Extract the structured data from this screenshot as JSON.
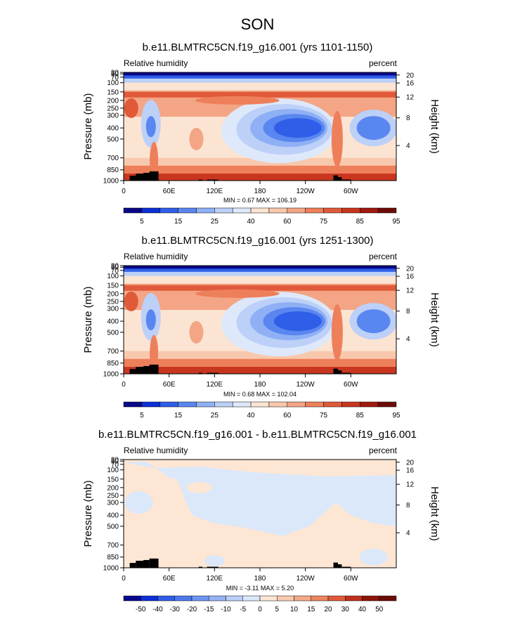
{
  "title": "SON",
  "chart_data": [
    {
      "type": "heatmap",
      "title": "b.e11.BLMTRC5CN.f19_g16.001 (yrs 1101-1150)",
      "left_label": "Relative humidity",
      "right_label": "percent",
      "ylabel": "Pressure (mb)",
      "ylabel_right": "Height (km)",
      "y_ticks": [
        "30",
        "50",
        "70",
        "100",
        "150",
        "200",
        "250",
        "300",
        "400",
        "500",
        "700",
        "850",
        "1000"
      ],
      "y_right_ticks": [
        "20",
        "16",
        "12",
        "8",
        "4"
      ],
      "x_ticks": [
        "0",
        "60E",
        "120E",
        "180",
        "120W",
        "60W"
      ],
      "stats": "MIN = 0.67  MAX = 106.19",
      "min": 0.67,
      "max": 106.19,
      "colorbar_labels": [
        "5",
        "15",
        "25",
        "40",
        "60",
        "75",
        "85",
        "95"
      ]
    },
    {
      "type": "heatmap",
      "title": "b.e11.BLMTRC5CN.f19_g16.001 (yrs 1251-1300)",
      "left_label": "Relative humidity",
      "right_label": "percent",
      "ylabel": "Pressure (mb)",
      "ylabel_right": "Height (km)",
      "y_ticks": [
        "30",
        "50",
        "70",
        "100",
        "150",
        "200",
        "250",
        "300",
        "400",
        "500",
        "700",
        "850",
        "1000"
      ],
      "y_right_ticks": [
        "20",
        "16",
        "12",
        "8",
        "4"
      ],
      "x_ticks": [
        "0",
        "60E",
        "120E",
        "180",
        "120W",
        "60W"
      ],
      "stats": "MIN = 0.68  MAX = 102.04",
      "min": 0.68,
      "max": 102.04,
      "colorbar_labels": [
        "5",
        "15",
        "25",
        "40",
        "60",
        "75",
        "85",
        "95"
      ]
    },
    {
      "type": "heatmap",
      "title": "b.e11.BLMTRC5CN.f19_g16.001 - b.e11.BLMTRC5CN.f19_g16.001",
      "left_label": "Relative humidity",
      "right_label": "percent",
      "ylabel": "Pressure (mb)",
      "ylabel_right": "Height (km)",
      "y_ticks": [
        "30",
        "50",
        "70",
        "100",
        "150",
        "200",
        "250",
        "300",
        "400",
        "500",
        "700",
        "850",
        "1000"
      ],
      "y_right_ticks": [
        "20",
        "16",
        "12",
        "8",
        "4"
      ],
      "x_ticks": [
        "0",
        "60E",
        "120E",
        "180",
        "120W",
        "60W"
      ],
      "stats": "MIN = -3.11  MAX = 5.20",
      "min": -3.11,
      "max": 5.2,
      "colorbar_labels": [
        "-50",
        "-40",
        "-30",
        "-20",
        "-15",
        "-10",
        "-5",
        "0",
        "5",
        "10",
        "15",
        "20",
        "30",
        "40",
        "50"
      ]
    }
  ],
  "colors": {
    "rh_scale": [
      "#08088a",
      "#0c2fd6",
      "#2f5ee8",
      "#5a86f0",
      "#8fb0f5",
      "#bcd0f8",
      "#dde8fa",
      "#fbe4d2",
      "#f8c8ad",
      "#f4a585",
      "#ee7f5b",
      "#e05a3a",
      "#c8361f",
      "#a0180f",
      "#6e0c08"
    ],
    "diff_scale": [
      "#08088a",
      "#0c2fd6",
      "#2f5ee8",
      "#4d78ee",
      "#6f95f2",
      "#95b3f5",
      "#bcd0f8",
      "#dbe8fa",
      "#fde6d4",
      "#f9cbb0",
      "#f5a988",
      "#ee845f",
      "#e05a3a",
      "#c0301b",
      "#8e140b",
      "#6e0c08"
    ],
    "topography": "#000000"
  }
}
